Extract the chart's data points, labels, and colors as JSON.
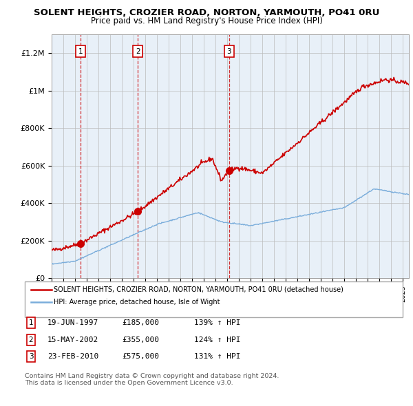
{
  "title": "SOLENT HEIGHTS, CROZIER ROAD, NORTON, YARMOUTH, PO41 0RU",
  "subtitle": "Price paid vs. HM Land Registry's House Price Index (HPI)",
  "ylim": [
    0,
    1300000
  ],
  "yticks": [
    0,
    200000,
    400000,
    600000,
    800000,
    1000000,
    1200000
  ],
  "ytick_labels": [
    "£0",
    "£200K",
    "£400K",
    "£600K",
    "£800K",
    "£1M",
    "£1.2M"
  ],
  "sale_dates": [
    1997.47,
    2002.37,
    2010.14
  ],
  "sale_prices": [
    185000,
    355000,
    575000
  ],
  "sale_labels": [
    "1",
    "2",
    "3"
  ],
  "property_color": "#cc0000",
  "hpi_color": "#7aaddb",
  "background_color": "#e8f0f8",
  "legend_property": "SOLENT HEIGHTS, CROZIER ROAD, NORTON, YARMOUTH, PO41 0RU (detached house)",
  "legend_hpi": "HPI: Average price, detached house, Isle of Wight",
  "table_entries": [
    [
      "1",
      "19-JUN-1997",
      "£185,000",
      "139% ↑ HPI"
    ],
    [
      "2",
      "15-MAY-2002",
      "£355,000",
      "124% ↑ HPI"
    ],
    [
      "3",
      "23-FEB-2010",
      "£575,000",
      "131% ↑ HPI"
    ]
  ],
  "footer": "Contains HM Land Registry data © Crown copyright and database right 2024.\nThis data is licensed under the Open Government Licence v3.0.",
  "xmin": 1995,
  "xmax": 2025.5
}
